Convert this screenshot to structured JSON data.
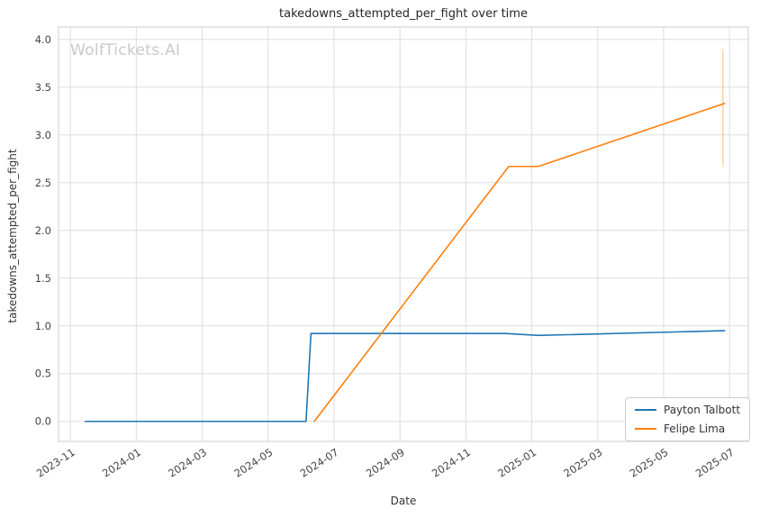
{
  "watermark": "WolfTickets.AI",
  "colors": {
    "grid": "#dddddd",
    "plot_border": "#cccccc",
    "tick_text": "#444444",
    "series_blue": "#1f77b4",
    "series_orange": "#ff7f0e"
  },
  "chart_data": {
    "type": "line",
    "title": "takedowns_attempted_per_fight over time",
    "xlabel": "Date",
    "ylabel": "takedowns_attempted_per_fight",
    "grid": true,
    "legend_position": "lower right",
    "x_axis": {
      "unit": "months_since_2023-11",
      "xlim": [
        -0.36,
        20.57
      ],
      "ticks": [
        {
          "label": "2023-11",
          "m": 0
        },
        {
          "label": "2024-01",
          "m": 2
        },
        {
          "label": "2024-03",
          "m": 4
        },
        {
          "label": "2024-05",
          "m": 6
        },
        {
          "label": "2024-07",
          "m": 8
        },
        {
          "label": "2024-09",
          "m": 10
        },
        {
          "label": "2024-11",
          "m": 12
        },
        {
          "label": "2025-01",
          "m": 14
        },
        {
          "label": "2025-03",
          "m": 16
        },
        {
          "label": "2025-05",
          "m": 18
        },
        {
          "label": "2025-07",
          "m": 20
        }
      ]
    },
    "y_axis": {
      "ylim": [
        -0.21,
        4.13
      ],
      "ticks": [
        "0.0",
        "0.5",
        "1.0",
        "1.5",
        "2.0",
        "2.5",
        "3.0",
        "3.5",
        "4.0"
      ]
    },
    "series": [
      {
        "name": "Payton Talbott",
        "color": "#1f77b4",
        "points": [
          [
            0.45,
            0.0
          ],
          [
            7.15,
            0.0
          ],
          [
            7.3,
            0.92
          ],
          [
            13.2,
            0.92
          ],
          [
            14.2,
            0.9
          ],
          [
            19.85,
            0.95
          ]
        ]
      },
      {
        "name": "Felipe Lima",
        "color": "#ff7f0e",
        "points": [
          [
            7.4,
            0.0
          ],
          [
            13.3,
            2.67
          ],
          [
            14.2,
            2.67
          ],
          [
            19.85,
            3.33
          ]
        ]
      }
    ],
    "annotation_line": {
      "m": 19.8,
      "y_from": 2.67,
      "y_to": 3.9,
      "color": "#ff7f0e",
      "opacity": 0.45
    }
  }
}
